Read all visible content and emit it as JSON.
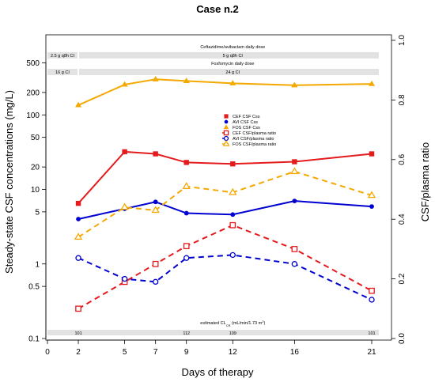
{
  "chart_data": {
    "type": "line",
    "title": "Case n.2",
    "xlabel": "Days of therapy",
    "ylabel_left": "Steady-state CSF concentrations (mg/L)",
    "ylabel_right": "CSF/plasma ratio",
    "x_ticks": [
      "0",
      "2",
      "5",
      "7",
      "9",
      "12",
      "16",
      "21"
    ],
    "x_values": [
      0,
      2,
      5,
      7,
      9,
      12,
      16,
      21
    ],
    "xlim": [
      0,
      22
    ],
    "yscale_left": "log",
    "ylim_left": [
      0.1,
      1000
    ],
    "y_ticks_left": [
      "0.1",
      "0.5",
      "1",
      "5",
      "10",
      "20",
      "50",
      "100",
      "200",
      "500"
    ],
    "y_tick_values_left": [
      0.1,
      0.5,
      1,
      5,
      10,
      20,
      50,
      100,
      200,
      500
    ],
    "ylim_right": [
      0,
      1
    ],
    "y_ticks_right": [
      "0.0",
      "0.2",
      "0.4",
      "0.6",
      "0.8",
      "1.0"
    ],
    "y_tick_values_right": [
      0,
      0.2,
      0.4,
      0.6,
      0.8,
      1.0
    ],
    "grid": false,
    "legend_position": "center",
    "series": [
      {
        "name": "CEF CSF Css",
        "axis": "left",
        "color": "#e41a1c",
        "marker": "filled-square",
        "dash": false,
        "x": [
          2,
          5,
          7,
          9,
          12,
          16,
          21
        ],
        "y": [
          6.5,
          32,
          30,
          23,
          22,
          23.5,
          30
        ]
      },
      {
        "name": "AVI CSF Css",
        "axis": "left",
        "color": "#0000d0",
        "marker": "filled-circle",
        "dash": false,
        "x": [
          2,
          5,
          7,
          9,
          12,
          16,
          21
        ],
        "y": [
          4.0,
          5.5,
          6.8,
          4.8,
          4.6,
          7.0,
          5.9
        ]
      },
      {
        "name": "FOS CSF Css",
        "axis": "left",
        "color": "#f5a800",
        "marker": "filled-triangle",
        "dash": false,
        "x": [
          2,
          5,
          7,
          9,
          12,
          16,
          21
        ],
        "y": [
          135,
          255,
          300,
          285,
          265,
          250,
          260
        ]
      },
      {
        "name": "CEF CSF/plasma ratio",
        "axis": "right",
        "color": "#e41a1c",
        "marker": "open-square",
        "dash": true,
        "x": [
          2,
          5,
          7,
          9,
          12,
          16,
          21
        ],
        "y": [
          0.1,
          0.19,
          0.25,
          0.31,
          0.38,
          0.3,
          0.16
        ]
      },
      {
        "name": "AVI CSF/plasma ratio",
        "axis": "right",
        "color": "#0000d0",
        "marker": "open-circle",
        "dash": true,
        "x": [
          2,
          5,
          7,
          9,
          12,
          16,
          21
        ],
        "y": [
          0.27,
          0.2,
          0.19,
          0.27,
          0.28,
          0.25,
          0.13
        ]
      },
      {
        "name": "FOS CSF/plasma ratio",
        "axis": "right",
        "color": "#f5a800",
        "marker": "open-triangle",
        "dash": true,
        "x": [
          2,
          5,
          7,
          9,
          12,
          16,
          21
        ],
        "y": [
          0.34,
          0.44,
          0.43,
          0.51,
          0.49,
          0.56,
          0.48
        ]
      }
    ],
    "dose_annotations": {
      "caz_title": "Ceftazidime/avibactam daily dose",
      "caz_left": "2.5 g q8h CI",
      "caz_main": "5 g q8h CI",
      "fos_title": "Fosfomycin daily dose",
      "fos_left": "16 g CI",
      "fos_main": "24 g CI"
    },
    "clearance": {
      "title": "estimated CL",
      "subscript": "CR",
      "unit": " (mL/min/1.73 m",
      "sup": "2",
      "close": ")",
      "values": [
        {
          "x": 2,
          "label": "101"
        },
        {
          "x": 9,
          "label": "112"
        },
        {
          "x": 12,
          "label": "109"
        },
        {
          "x": 21,
          "label": "101"
        }
      ]
    }
  }
}
